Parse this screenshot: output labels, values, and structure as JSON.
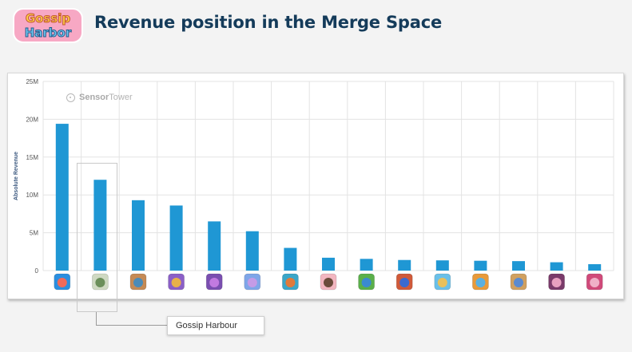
{
  "header": {
    "logo_text_line1": "Gossip",
    "logo_text_line2": "Harbor",
    "title": "Revenue position in the Merge Space"
  },
  "watermark": {
    "brand_part1": "Sensor",
    "brand_part2": "Tower",
    "icon": "sensor-tower-logo-icon"
  },
  "callout": {
    "label": "Gossip Harbour"
  },
  "colors": {
    "bar": "#1f97d4",
    "title": "#143b5a",
    "grid": "#e3e3e3"
  },
  "chart_data": {
    "type": "bar",
    "title": "",
    "xlabel": "",
    "ylabel": "Absolute Revenue",
    "ylim": [
      0,
      25000000
    ],
    "yticks": [
      0,
      5000000,
      10000000,
      15000000,
      20000000,
      25000000
    ],
    "ytick_labels": [
      "0",
      "5M",
      "10M",
      "15M",
      "20M",
      "25M"
    ],
    "grid": true,
    "legend": "none",
    "categories": [
      "app-icon-1",
      "app-icon-2",
      "app-icon-3",
      "app-icon-4",
      "app-icon-5",
      "app-icon-6",
      "app-icon-7",
      "app-icon-8",
      "app-icon-9",
      "app-icon-10",
      "app-icon-11",
      "app-icon-12",
      "app-icon-13",
      "app-icon-14",
      "app-icon-15"
    ],
    "values": [
      19400000,
      12000000,
      9300000,
      8600000,
      6500000,
      5200000,
      3000000,
      1700000,
      1550000,
      1400000,
      1350000,
      1300000,
      1250000,
      1100000,
      850000
    ],
    "highlight_index": 1,
    "icon_colors": [
      [
        "#2a8fe0",
        "#f06a5a"
      ],
      [
        "#cfd9c2",
        "#6b8f5a"
      ],
      [
        "#c58a55",
        "#4b8bb8"
      ],
      [
        "#8b5fc7",
        "#e8b04a"
      ],
      [
        "#7a4fb0",
        "#c27ae0"
      ],
      [
        "#7fa6e8",
        "#c49be6"
      ],
      [
        "#3aa6c8",
        "#e07a3a"
      ],
      [
        "#f2b6c0",
        "#6a4b3a"
      ],
      [
        "#5aaf4a",
        "#3a8ad0"
      ],
      [
        "#d05a3a",
        "#3a6ad0"
      ],
      [
        "#6ac0e8",
        "#e8c05a"
      ],
      [
        "#e89a3a",
        "#5ab0e0"
      ],
      [
        "#d0a060",
        "#5a8ad0"
      ],
      [
        "#7a3a6a",
        "#e8a0c0"
      ],
      [
        "#d04a7a",
        "#f0b0c8"
      ]
    ]
  }
}
